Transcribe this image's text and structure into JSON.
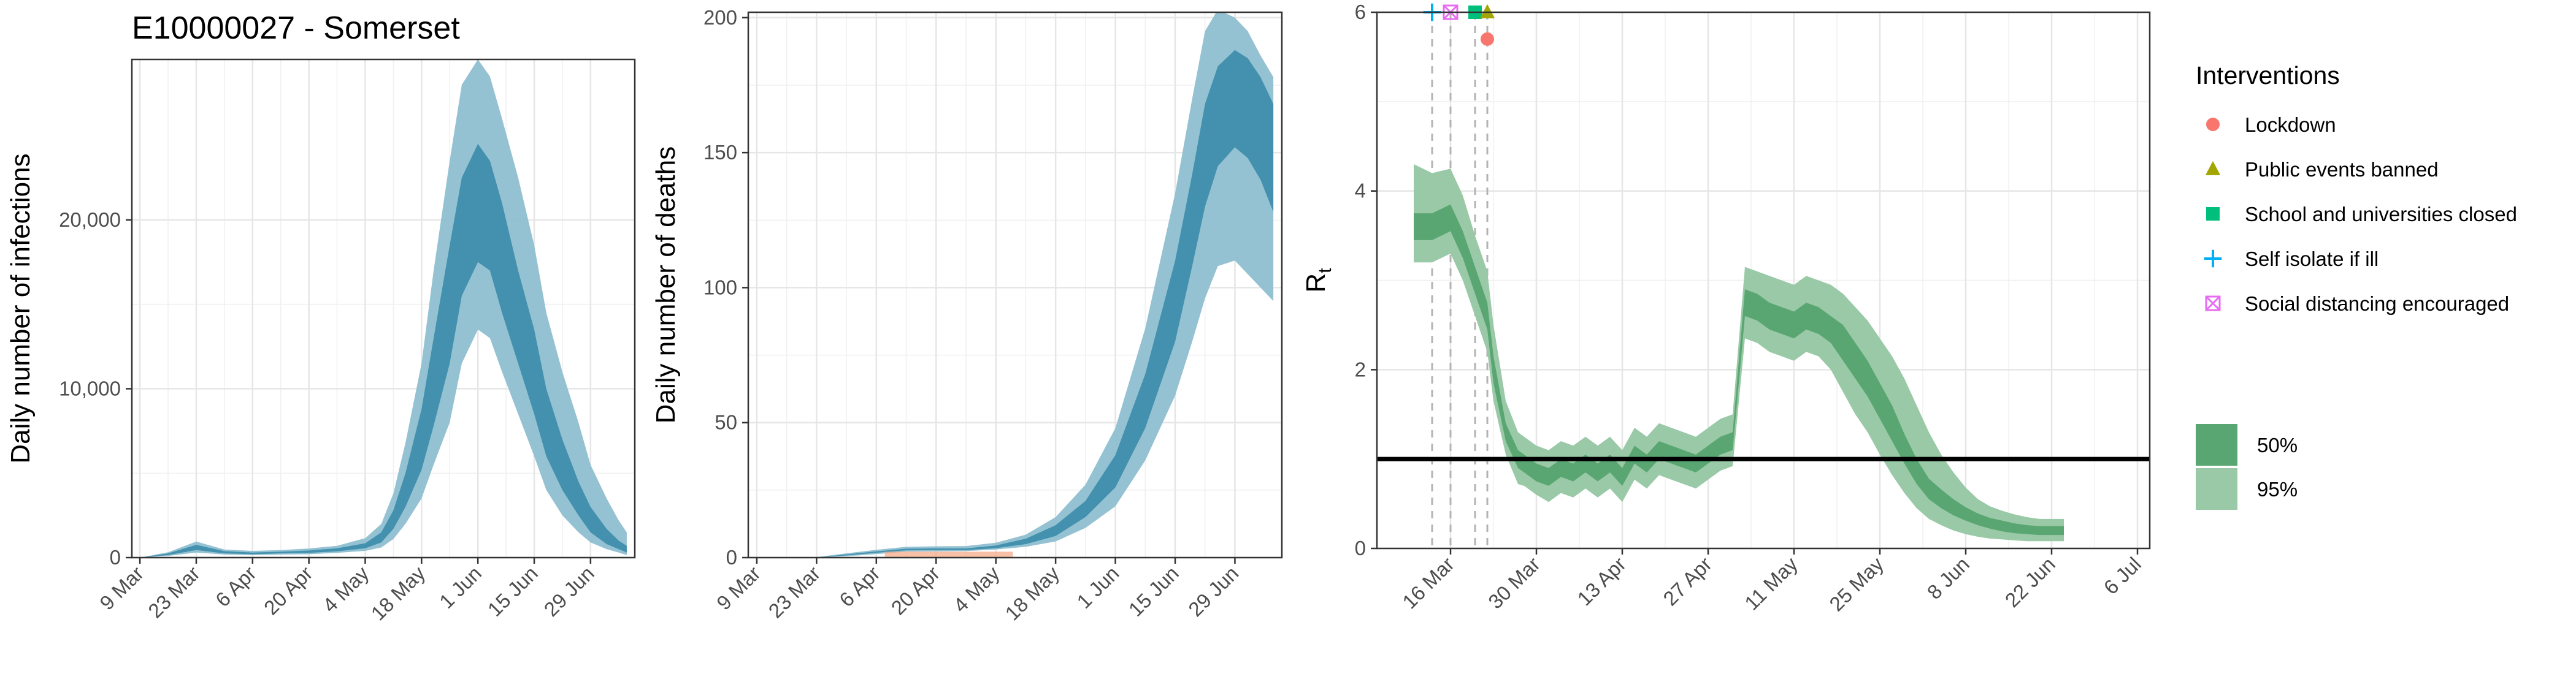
{
  "figure_title": "E10000027 - Somerset",
  "colors": {
    "infections_95": "#8fbfd0",
    "infections_50": "#3a8caa",
    "rt_95": "#99c9a6",
    "rt_50": "#5aa672",
    "lockdown": "#f8766d",
    "public_events": "#a3a500",
    "schools": "#00bf7d",
    "self_isolate": "#00b0f6",
    "social_distancing": "#e76bf3",
    "threshold_line": "#000000",
    "observed_deaths": "#f4a582"
  },
  "chart_data": [
    {
      "type": "area",
      "ylabel": "Daily number of infections",
      "xlabel": "",
      "ylim": [
        0,
        29500
      ],
      "yticks": [
        0,
        10000,
        20000
      ],
      "ytick_labels": [
        "0",
        "10,000",
        "20,000"
      ],
      "xticks": [
        "9 Mar",
        "23 Mar",
        "6 Apr",
        "20 Apr",
        "4 May",
        "18 May",
        "1 Jun",
        "15 Jun",
        "29 Jun"
      ],
      "x_start": "2020-03-09",
      "bands": {
        "day": [
          0,
          7,
          14,
          21,
          28,
          35,
          42,
          49,
          56,
          60,
          63,
          66,
          70,
          73,
          77,
          80,
          84,
          87,
          90,
          94,
          98,
          101,
          105,
          109,
          112,
          116,
          119,
          121
        ],
        "median": [
          0,
          200,
          600,
          300,
          250,
          300,
          350,
          450,
          700,
          1200,
          2200,
          4000,
          7000,
          10500,
          15000,
          19000,
          21000,
          20000,
          17500,
          14000,
          11000,
          8000,
          5500,
          3500,
          2200,
          1200,
          700,
          500
        ],
        "lo50": [
          0,
          150,
          450,
          250,
          200,
          250,
          280,
          370,
          550,
          900,
          1700,
          3000,
          5200,
          7800,
          11500,
          15500,
          17500,
          17000,
          14500,
          11500,
          8500,
          6000,
          4000,
          2500,
          1500,
          800,
          500,
          300
        ],
        "hi50": [
          0,
          250,
          750,
          380,
          300,
          350,
          420,
          550,
          850,
          1500,
          2800,
          5000,
          8800,
          13000,
          18500,
          22500,
          24500,
          23500,
          21000,
          17000,
          13500,
          10000,
          7000,
          4500,
          3000,
          1700,
          1000,
          700
        ],
        "lo95": [
          0,
          100,
          300,
          180,
          150,
          180,
          200,
          280,
          400,
          600,
          1100,
          2000,
          3500,
          5500,
          8000,
          11500,
          13500,
          13000,
          11000,
          8500,
          6000,
          4000,
          2500,
          1500,
          900,
          500,
          300,
          150
        ],
        "hi95": [
          0,
          320,
          950,
          480,
          400,
          450,
          540,
          700,
          1150,
          2000,
          3800,
          6800,
          11500,
          17000,
          23500,
          28000,
          29500,
          28500,
          26000,
          22500,
          18500,
          14500,
          11000,
          8000,
          5500,
          3500,
          2200,
          1500
        ]
      }
    },
    {
      "type": "area",
      "ylabel": "Daily number of deaths",
      "xlabel": "",
      "ylim": [
        0,
        202
      ],
      "yticks": [
        0,
        50,
        100,
        150,
        200
      ],
      "ytick_labels": [
        "0",
        "50",
        "100",
        "150",
        "200"
      ],
      "xticks": [
        "9 Mar",
        "23 Mar",
        "6 Apr",
        "20 Apr",
        "4 May",
        "18 May",
        "1 Jun",
        "15 Jun",
        "29 Jun"
      ],
      "x_start": "2020-03-09",
      "observed_deaths_span_days": [
        30,
        60
      ],
      "bands": {
        "day": [
          0,
          14,
          21,
          28,
          35,
          42,
          49,
          56,
          63,
          70,
          77,
          84,
          91,
          98,
          102,
          105,
          108,
          112,
          115,
          118,
          121
        ],
        "median": [
          0,
          0,
          1,
          2,
          3,
          3,
          3,
          4,
          6,
          10,
          18,
          32,
          58,
          95,
          125,
          150,
          165,
          170,
          167,
          160,
          148
        ],
        "lo50": [
          0,
          0,
          0.8,
          1.8,
          2.7,
          2.8,
          2.8,
          3.5,
          5,
          8,
          15,
          26,
          48,
          80,
          108,
          130,
          145,
          152,
          148,
          140,
          128
        ],
        "hi50": [
          0,
          0,
          1.2,
          2.3,
          3.3,
          3.4,
          3.4,
          4.5,
          7,
          12,
          21,
          38,
          68,
          110,
          142,
          168,
          182,
          188,
          185,
          178,
          168
        ],
        "lo95": [
          0,
          0,
          0.5,
          1.3,
          2.2,
          2.3,
          2.4,
          3,
          4,
          6,
          11,
          19,
          36,
          60,
          80,
          96,
          108,
          110,
          105,
          100,
          95
        ],
        "hi95": [
          0,
          0.2,
          1.6,
          2.9,
          4,
          4.2,
          4.3,
          5.5,
          8.5,
          15,
          27,
          48,
          85,
          135,
          170,
          195,
          203,
          200,
          195,
          186,
          178
        ]
      }
    },
    {
      "type": "area",
      "ylabel": "R",
      "ylabel_sub": "t",
      "xlabel": "",
      "ylim": [
        0,
        6
      ],
      "yticks": [
        0,
        2,
        4,
        6
      ],
      "ytick_labels": [
        "0",
        "2",
        "4",
        "6"
      ],
      "xticks": [
        "16 Mar",
        "30 Mar",
        "13 Apr",
        "27 Apr",
        "11 May",
        "25 May",
        "8 Jun",
        "22 Jun",
        "6 Jul"
      ],
      "x_start": "2020-03-16",
      "threshold": 1,
      "interventions": [
        {
          "name": "Self isolate if ill",
          "day": -3,
          "r": 6.0,
          "shape": "plus",
          "color_key": "self_isolate"
        },
        {
          "name": "Social distancing encouraged",
          "day": 0,
          "r": 6.0,
          "shape": "boxx",
          "color_key": "social_distancing"
        },
        {
          "name": "School and universities closed",
          "day": 4,
          "r": 6.0,
          "shape": "square",
          "color_key": "schools"
        },
        {
          "name": "Public events banned",
          "day": 6,
          "r": 6.0,
          "shape": "triangle",
          "color_key": "public_events"
        },
        {
          "name": "Lockdown",
          "day": 6,
          "r": 5.7,
          "shape": "circle",
          "color_key": "lockdown"
        }
      ],
      "bands": {
        "day": [
          -6,
          -3,
          0,
          2,
          4,
          6,
          7,
          9,
          11,
          12,
          14,
          16,
          18,
          20,
          22,
          24,
          26,
          28,
          30,
          32,
          34,
          36,
          38,
          40,
          42,
          44,
          46,
          48,
          50,
          52,
          54,
          56,
          58,
          60,
          62,
          64,
          66,
          68,
          70,
          72,
          74,
          76,
          78,
          80,
          82,
          84,
          86,
          88,
          90,
          92,
          94,
          96,
          98,
          100
        ],
        "median": [
          3.6,
          3.6,
          3.7,
          3.4,
          3.0,
          2.6,
          2.0,
          1.3,
          1.0,
          0.95,
          0.85,
          0.8,
          0.9,
          0.85,
          0.95,
          0.85,
          0.95,
          0.8,
          1.05,
          0.95,
          1.1,
          1.05,
          1.0,
          0.95,
          1.05,
          1.15,
          1.2,
          2.75,
          2.7,
          2.6,
          2.55,
          2.5,
          2.6,
          2.55,
          2.45,
          2.3,
          2.1,
          1.9,
          1.65,
          1.4,
          1.1,
          0.85,
          0.65,
          0.55,
          0.45,
          0.38,
          0.32,
          0.28,
          0.25,
          0.22,
          0.21,
          0.2,
          0.2,
          0.2
        ],
        "lo50": [
          3.45,
          3.45,
          3.55,
          3.25,
          2.85,
          2.45,
          1.85,
          1.2,
          0.9,
          0.85,
          0.75,
          0.7,
          0.8,
          0.75,
          0.85,
          0.75,
          0.85,
          0.7,
          0.95,
          0.85,
          1.0,
          0.95,
          0.9,
          0.85,
          0.95,
          1.05,
          1.1,
          2.6,
          2.55,
          2.45,
          2.4,
          2.35,
          2.45,
          2.4,
          2.3,
          2.1,
          1.9,
          1.7,
          1.45,
          1.2,
          0.95,
          0.72,
          0.55,
          0.45,
          0.37,
          0.31,
          0.26,
          0.22,
          0.19,
          0.17,
          0.16,
          0.15,
          0.15,
          0.15
        ],
        "hi50": [
          3.75,
          3.75,
          3.85,
          3.55,
          3.15,
          2.75,
          2.15,
          1.4,
          1.1,
          1.05,
          0.95,
          0.9,
          1.0,
          0.95,
          1.05,
          0.95,
          1.05,
          0.9,
          1.15,
          1.05,
          1.2,
          1.15,
          1.1,
          1.05,
          1.15,
          1.25,
          1.3,
          2.9,
          2.85,
          2.75,
          2.7,
          2.65,
          2.75,
          2.7,
          2.6,
          2.5,
          2.3,
          2.1,
          1.85,
          1.6,
          1.28,
          1.0,
          0.78,
          0.66,
          0.55,
          0.46,
          0.39,
          0.34,
          0.31,
          0.28,
          0.26,
          0.25,
          0.25,
          0.25
        ],
        "lo95": [
          3.2,
          3.2,
          3.3,
          3.0,
          2.6,
          2.2,
          1.65,
          1.05,
          0.72,
          0.7,
          0.6,
          0.52,
          0.62,
          0.57,
          0.67,
          0.57,
          0.67,
          0.52,
          0.77,
          0.67,
          0.82,
          0.77,
          0.72,
          0.67,
          0.77,
          0.87,
          0.92,
          2.35,
          2.3,
          2.2,
          2.15,
          2.1,
          2.2,
          2.15,
          2.0,
          1.75,
          1.5,
          1.3,
          1.05,
          0.82,
          0.62,
          0.45,
          0.33,
          0.26,
          0.2,
          0.16,
          0.13,
          0.11,
          0.1,
          0.09,
          0.08,
          0.08,
          0.08,
          0.08
        ],
        "hi95": [
          4.3,
          4.2,
          4.25,
          3.95,
          3.5,
          3.1,
          2.5,
          1.65,
          1.3,
          1.25,
          1.15,
          1.1,
          1.2,
          1.15,
          1.25,
          1.15,
          1.25,
          1.1,
          1.35,
          1.25,
          1.4,
          1.35,
          1.3,
          1.25,
          1.35,
          1.45,
          1.5,
          3.15,
          3.1,
          3.05,
          3.0,
          2.95,
          3.05,
          3.0,
          2.95,
          2.85,
          2.7,
          2.55,
          2.35,
          2.15,
          1.9,
          1.6,
          1.3,
          1.05,
          0.85,
          0.68,
          0.55,
          0.47,
          0.42,
          0.38,
          0.35,
          0.33,
          0.33,
          0.33
        ]
      }
    }
  ],
  "legend": {
    "interventions_title": "Interventions",
    "interventions": [
      {
        "label": "Lockdown",
        "shape": "circle",
        "color_key": "lockdown"
      },
      {
        "label": "Public events banned",
        "shape": "triangle",
        "color_key": "public_events"
      },
      {
        "label": "School and universities closed",
        "shape": "square",
        "color_key": "schools"
      },
      {
        "label": "Self isolate if ill",
        "shape": "plus",
        "color_key": "self_isolate"
      },
      {
        "label": "Social distancing encouraged",
        "shape": "boxx",
        "color_key": "social_distancing"
      }
    ],
    "intervals": [
      {
        "label": "50%",
        "color_key": "rt_50"
      },
      {
        "label": "95%",
        "color_key": "rt_95"
      }
    ]
  }
}
